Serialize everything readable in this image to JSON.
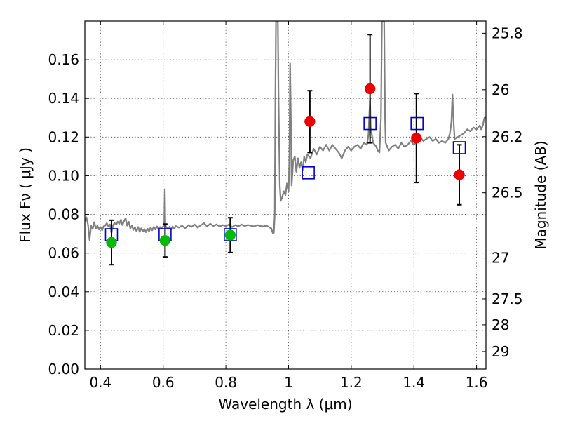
{
  "chart_data": {
    "type": "scatter",
    "xlabel": "Wavelength  λ (μm)",
    "ylabel": "Flux  Fν  ( μJy )",
    "right_ylabel": "Magnitude (AB)",
    "xlim": [
      0.35,
      1.63
    ],
    "ylim": [
      0.0,
      0.18
    ],
    "x_ticks": [
      0.4,
      0.6,
      0.8,
      1.0,
      1.2,
      1.4,
      1.6
    ],
    "x_tick_labels": [
      "0.4",
      "0.6",
      "0.8",
      "1",
      "1.2",
      "1.4",
      "1.6"
    ],
    "y_ticks": [
      0.0,
      0.02,
      0.04,
      0.06,
      0.08,
      0.1,
      0.12,
      0.14,
      0.16
    ],
    "y_tick_labels": [
      "0.00",
      "0.02",
      "0.04",
      "0.06",
      "0.08",
      "0.10",
      "0.12",
      "0.14",
      "0.16"
    ],
    "right_ticks": [
      {
        "label": "25.8",
        "flux": 0.1737
      },
      {
        "label": "26",
        "flux": 0.1445
      },
      {
        "label": "26.2",
        "flux": 0.1202
      },
      {
        "label": "26.5",
        "flux": 0.0912
      },
      {
        "label": "27",
        "flux": 0.0575
      },
      {
        "label": "27.5",
        "flux": 0.0363
      },
      {
        "label": "28",
        "flux": 0.0229
      },
      {
        "label": "29",
        "flux": 0.0091
      }
    ],
    "grid": true,
    "colors": {
      "template": "#808080",
      "model_box": "#0000cc",
      "optical": "#00bb00",
      "nir": "#ee0000",
      "error": "#000000"
    },
    "series": [
      {
        "marker": "open-square",
        "points": [
          {
            "x": 0.435,
            "y": 0.0695
          },
          {
            "x": 0.606,
            "y": 0.0695
          },
          {
            "x": 0.814,
            "y": 0.0695
          },
          {
            "x": 1.063,
            "y": 0.1015
          },
          {
            "x": 1.26,
            "y": 0.127
          },
          {
            "x": 1.41,
            "y": 0.127
          },
          {
            "x": 1.545,
            "y": 0.1145
          }
        ]
      },
      {
        "marker": "circle",
        "color_key": "optical",
        "points": [
          {
            "x": 0.435,
            "y": 0.0655,
            "err": 0.0115
          },
          {
            "x": 0.606,
            "y": 0.0665,
            "err": 0.0085
          },
          {
            "x": 0.814,
            "y": 0.0693,
            "err": 0.009
          }
        ]
      },
      {
        "marker": "circle",
        "color_key": "nir",
        "points": [
          {
            "x": 1.068,
            "y": 0.128,
            "err": 0.016
          },
          {
            "x": 1.26,
            "y": 0.145,
            "err": 0.028
          },
          {
            "x": 1.408,
            "y": 0.1195,
            "err": 0.023
          },
          {
            "x": 1.545,
            "y": 0.1005,
            "err": 0.0155
          }
        ]
      },
      {
        "type": "line",
        "points": [
          [
            0.35,
            0.0765
          ],
          [
            0.355,
            0.0785
          ],
          [
            0.36,
            0.0748
          ],
          [
            0.365,
            0.0668
          ],
          [
            0.37,
            0.0742
          ],
          [
            0.375,
            0.0725
          ],
          [
            0.38,
            0.076
          ],
          [
            0.385,
            0.0728
          ],
          [
            0.39,
            0.0742
          ],
          [
            0.395,
            0.0722
          ],
          [
            0.4,
            0.0735
          ],
          [
            0.405,
            0.0718
          ],
          [
            0.41,
            0.0739
          ],
          [
            0.415,
            0.0742
          ],
          [
            0.42,
            0.0755
          ],
          [
            0.425,
            0.0738
          ],
          [
            0.43,
            0.0748
          ],
          [
            0.435,
            0.0702
          ],
          [
            0.44,
            0.0745
          ],
          [
            0.445,
            0.0755
          ],
          [
            0.45,
            0.0747
          ],
          [
            0.455,
            0.0763
          ],
          [
            0.46,
            0.0752
          ],
          [
            0.465,
            0.0773
          ],
          [
            0.47,
            0.0745
          ],
          [
            0.475,
            0.0765
          ],
          [
            0.48,
            0.078
          ],
          [
            0.485,
            0.0742
          ],
          [
            0.49,
            0.0762
          ],
          [
            0.495,
            0.0728
          ],
          [
            0.5,
            0.0742
          ],
          [
            0.505,
            0.072
          ],
          [
            0.51,
            0.0734
          ],
          [
            0.515,
            0.0712
          ],
          [
            0.52,
            0.0735
          ],
          [
            0.525,
            0.071
          ],
          [
            0.53,
            0.0728
          ],
          [
            0.535,
            0.0712
          ],
          [
            0.54,
            0.0724
          ],
          [
            0.545,
            0.0708
          ],
          [
            0.55,
            0.0726
          ],
          [
            0.555,
            0.0712
          ],
          [
            0.56,
            0.0732
          ],
          [
            0.565,
            0.0718
          ],
          [
            0.57,
            0.0736
          ],
          [
            0.575,
            0.0722
          ],
          [
            0.58,
            0.0738
          ],
          [
            0.585,
            0.0725
          ],
          [
            0.59,
            0.0735
          ],
          [
            0.595,
            0.073
          ],
          [
            0.6,
            0.0738
          ],
          [
            0.603,
            0.0745
          ],
          [
            0.605,
            0.093
          ],
          [
            0.607,
            0.0745
          ],
          [
            0.61,
            0.0735
          ],
          [
            0.615,
            0.0724
          ],
          [
            0.62,
            0.0736
          ],
          [
            0.625,
            0.0722
          ],
          [
            0.63,
            0.0738
          ],
          [
            0.635,
            0.0726
          ],
          [
            0.64,
            0.074
          ],
          [
            0.65,
            0.0732
          ],
          [
            0.66,
            0.0742
          ],
          [
            0.67,
            0.0728
          ],
          [
            0.68,
            0.0745
          ],
          [
            0.69,
            0.0735
          ],
          [
            0.7,
            0.0748
          ],
          [
            0.71,
            0.0732
          ],
          [
            0.72,
            0.0744
          ],
          [
            0.73,
            0.0755
          ],
          [
            0.74,
            0.0738
          ],
          [
            0.75,
            0.0752
          ],
          [
            0.76,
            0.074
          ],
          [
            0.77,
            0.0748
          ],
          [
            0.78,
            0.0738
          ],
          [
            0.79,
            0.0745
          ],
          [
            0.8,
            0.074
          ],
          [
            0.81,
            0.0748
          ],
          [
            0.82,
            0.0735
          ],
          [
            0.83,
            0.0745
          ],
          [
            0.84,
            0.0738
          ],
          [
            0.85,
            0.0748
          ],
          [
            0.86,
            0.074
          ],
          [
            0.87,
            0.0745
          ],
          [
            0.88,
            0.0742
          ],
          [
            0.89,
            0.0738
          ],
          [
            0.9,
            0.0745
          ],
          [
            0.91,
            0.074
          ],
          [
            0.92,
            0.0738
          ],
          [
            0.93,
            0.0742
          ],
          [
            0.94,
            0.0732
          ],
          [
            0.945,
            0.0728
          ],
          [
            0.95,
            0.0702
          ],
          [
            0.953,
            0.0705
          ],
          [
            0.956,
            0.08
          ],
          [
            0.958,
            0.14
          ],
          [
            0.96,
            0.18
          ],
          [
            0.966,
            0.18
          ],
          [
            0.968,
            0.14
          ],
          [
            0.972,
            0.095
          ],
          [
            0.975,
            0.087
          ],
          [
            0.98,
            0.089
          ],
          [
            0.985,
            0.092
          ],
          [
            0.99,
            0.09
          ],
          [
            0.995,
            0.096
          ],
          [
            1.0,
            0.092
          ],
          [
            1.003,
            0.11
          ],
          [
            1.005,
            0.158
          ],
          [
            1.007,
            0.135
          ],
          [
            1.01,
            0.095
          ],
          [
            1.015,
            0.108
          ],
          [
            1.02,
            0.11
          ],
          [
            1.025,
            0.102
          ],
          [
            1.03,
            0.109
          ],
          [
            1.035,
            0.104
          ],
          [
            1.04,
            0.107
          ],
          [
            1.045,
            0.103
          ],
          [
            1.05,
            0.11
          ],
          [
            1.055,
            0.107
          ],
          [
            1.06,
            0.111
          ],
          [
            1.07,
            0.109
          ],
          [
            1.08,
            0.114
          ],
          [
            1.09,
            0.111
          ],
          [
            1.1,
            0.115
          ],
          [
            1.11,
            0.113
          ],
          [
            1.12,
            0.116
          ],
          [
            1.13,
            0.113
          ],
          [
            1.14,
            0.116
          ],
          [
            1.15,
            0.114
          ],
          [
            1.16,
            0.112
          ],
          [
            1.17,
            0.109
          ],
          [
            1.18,
            0.113
          ],
          [
            1.19,
            0.115
          ],
          [
            1.2,
            0.113
          ],
          [
            1.21,
            0.115
          ],
          [
            1.22,
            0.116
          ],
          [
            1.23,
            0.114
          ],
          [
            1.24,
            0.117
          ],
          [
            1.25,
            0.116
          ],
          [
            1.255,
            0.121
          ],
          [
            1.26,
            0.14
          ],
          [
            1.262,
            0.125
          ],
          [
            1.27,
            0.117
          ],
          [
            1.28,
            0.115
          ],
          [
            1.285,
            0.113
          ],
          [
            1.29,
            0.112
          ],
          [
            1.295,
            0.13
          ],
          [
            1.298,
            0.18
          ],
          [
            1.305,
            0.18
          ],
          [
            1.308,
            0.13
          ],
          [
            1.31,
            0.117
          ],
          [
            1.32,
            0.113
          ],
          [
            1.33,
            0.115
          ],
          [
            1.34,
            0.116
          ],
          [
            1.35,
            0.114
          ],
          [
            1.36,
            0.117
          ],
          [
            1.37,
            0.115
          ],
          [
            1.38,
            0.116
          ],
          [
            1.39,
            0.118
          ],
          [
            1.4,
            0.116
          ],
          [
            1.41,
            0.118
          ],
          [
            1.42,
            0.12
          ],
          [
            1.43,
            0.118
          ],
          [
            1.44,
            0.119
          ],
          [
            1.45,
            0.12
          ],
          [
            1.46,
            0.118
          ],
          [
            1.47,
            0.119
          ],
          [
            1.48,
            0.117
          ],
          [
            1.49,
            0.118
          ],
          [
            1.5,
            0.117
          ],
          [
            1.51,
            0.119
          ],
          [
            1.515,
            0.122
          ],
          [
            1.52,
            0.128
          ],
          [
            1.523,
            0.142
          ],
          [
            1.526,
            0.13
          ],
          [
            1.53,
            0.119
          ],
          [
            1.54,
            0.12
          ],
          [
            1.55,
            0.121
          ],
          [
            1.56,
            0.122
          ],
          [
            1.57,
            0.124
          ],
          [
            1.58,
            0.123
          ],
          [
            1.59,
            0.125
          ],
          [
            1.6,
            0.124
          ],
          [
            1.61,
            0.126
          ],
          [
            1.615,
            0.124
          ],
          [
            1.62,
            0.126
          ],
          [
            1.625,
            0.13
          ],
          [
            1.63,
            0.13
          ]
        ]
      }
    ]
  }
}
